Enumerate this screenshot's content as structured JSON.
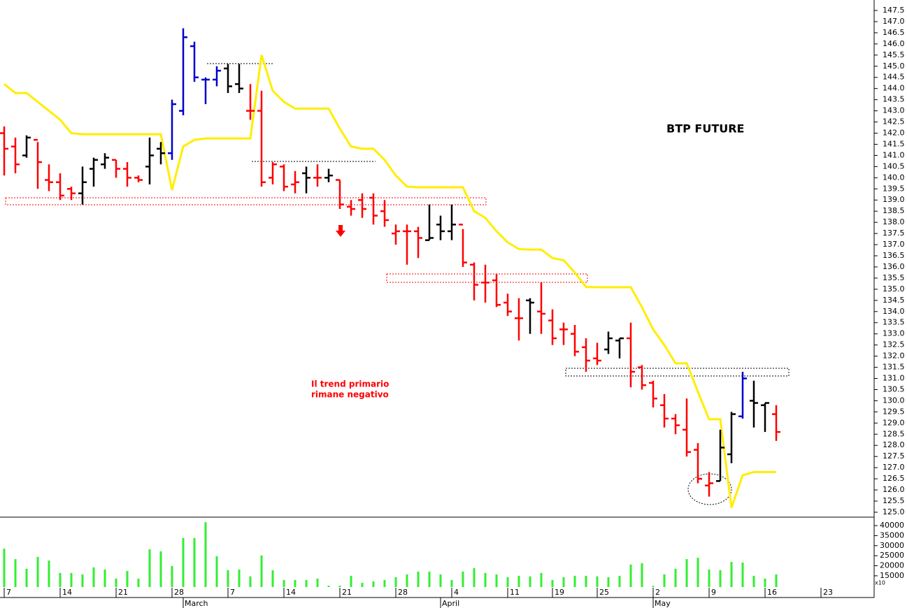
{
  "chart_data": {
    "type": "ohlc",
    "title": "BTP FUTURE",
    "annotation": [
      "Il trend primario",
      "rimane negativo"
    ],
    "categories": [
      "7",
      null,
      null,
      null,
      null,
      "14",
      null,
      null,
      null,
      null,
      "21",
      null,
      null,
      null,
      null,
      "28",
      null,
      null,
      null,
      null,
      "7",
      null,
      null,
      null,
      null,
      "14",
      null,
      null,
      null,
      null,
      "21",
      null,
      null,
      null,
      null,
      "28",
      null,
      null,
      null,
      null,
      "4",
      null,
      null,
      null,
      null,
      "11",
      null,
      null,
      null,
      "19",
      null,
      null,
      null,
      "25",
      null,
      null,
      null,
      null,
      "2",
      null,
      null,
      null,
      null,
      "9",
      null,
      null,
      null,
      null,
      "16",
      null,
      null,
      null,
      null,
      "23"
    ],
    "months": [
      null,
      null,
      null,
      null,
      null,
      null,
      null,
      null,
      null,
      null,
      null,
      null,
      null,
      null,
      null,
      null,
      "March",
      null,
      null,
      null,
      null,
      null,
      null,
      null,
      null,
      null,
      null,
      null,
      null,
      null,
      null,
      null,
      null,
      null,
      null,
      null,
      null,
      null,
      null,
      "April",
      null,
      null,
      null,
      null,
      null,
      null,
      null,
      null,
      null,
      null,
      null,
      null,
      null,
      null,
      null,
      null,
      null,
      null,
      "May",
      null,
      null,
      null,
      null,
      null,
      null,
      null,
      null,
      null,
      null,
      null,
      null,
      null,
      null,
      null
    ],
    "open": [
      142.0,
      141.4,
      141.0,
      141.7,
      139.9,
      139.8,
      139.5,
      139.3,
      140.4,
      140.6,
      140.8,
      140.4,
      140.0,
      140.5,
      141.3,
      141.1,
      143.0,
      145.9,
      144.4,
      144.4,
      144.9,
      144.2,
      143.0,
      143.0,
      140.0,
      140.5,
      139.7,
      140.2,
      140.0,
      140.0,
      139.9,
      138.7,
      139.0,
      139.1,
      138.5,
      137.5,
      137.6,
      137.6,
      137.2,
      137.9,
      137.6,
      137.9,
      136.1,
      135.3,
      135.4,
      134.4,
      133.7,
      134.5,
      134.0,
      133.6,
      133.2,
      133.0,
      132.4,
      131.9,
      132.3,
      132.7,
      132.8,
      131.5,
      130.8,
      129.8,
      129.2,
      128.7,
      127.8,
      126.2,
      126.4,
      127.6,
      129.3,
      130.0,
      129.8,
      129.4,
      null,
      null,
      null,
      null
    ],
    "high": [
      142.3,
      141.8,
      141.9,
      141.6,
      140.6,
      140.2,
      139.6,
      140.5,
      140.9,
      141.1,
      140.8,
      140.7,
      140.1,
      141.8,
      141.6,
      143.5,
      146.7,
      146.1,
      144.5,
      145.0,
      145.1,
      145.1,
      144.2,
      143.9,
      140.7,
      140.6,
      140.3,
      140.5,
      140.6,
      140.4,
      139.9,
      139.0,
      139.3,
      139.3,
      139.0,
      137.9,
      137.9,
      137.8,
      138.8,
      138.3,
      138.8,
      137.7,
      136.2,
      136.1,
      135.7,
      134.8,
      134.6,
      134.6,
      135.3,
      134.1,
      133.5,
      133.4,
      132.8,
      132.6,
      133.1,
      132.8,
      133.5,
      131.6,
      130.9,
      130.3,
      129.4,
      130.1,
      128.1,
      126.8,
      128.7,
      129.5,
      131.3,
      130.9,
      129.9,
      129.8,
      null,
      null,
      null,
      null
    ],
    "low": [
      140.1,
      140.2,
      140.9,
      139.5,
      139.4,
      139.0,
      139.0,
      138.8,
      139.6,
      140.4,
      140.0,
      139.6,
      139.8,
      139.7,
      140.6,
      140.8,
      142.8,
      144.3,
      143.3,
      144.1,
      143.8,
      143.8,
      142.6,
      139.6,
      139.7,
      139.4,
      139.3,
      139.3,
      139.6,
      139.8,
      138.6,
      138.3,
      138.2,
      137.9,
      137.8,
      137.0,
      136.1,
      136.4,
      137.2,
      137.2,
      137.2,
      136.0,
      134.5,
      134.4,
      134.2,
      133.8,
      132.7,
      133.0,
      133.0,
      132.5,
      132.5,
      132.0,
      131.3,
      131.6,
      132.1,
      131.9,
      130.6,
      130.5,
      129.7,
      128.8,
      128.5,
      127.5,
      126.3,
      125.7,
      126.4,
      127.2,
      129.2,
      128.8,
      128.6,
      128.2,
      null,
      null,
      null,
      null
    ],
    "close": [
      141.3,
      140.6,
      141.8,
      140.7,
      139.8,
      139.2,
      139.3,
      139.8,
      140.8,
      140.9,
      140.4,
      140.0,
      139.9,
      141.0,
      141.1,
      143.3,
      146.3,
      144.5,
      144.4,
      144.8,
      144.1,
      144.0,
      143.0,
      139.8,
      140.6,
      139.6,
      139.8,
      140.0,
      140.0,
      140.1,
      138.8,
      138.6,
      138.6,
      138.3,
      138.1,
      137.6,
      137.6,
      137.3,
      137.3,
      137.6,
      137.9,
      136.2,
      135.2,
      135.3,
      134.3,
      134.0,
      133.7,
      134.4,
      133.9,
      132.8,
      133.2,
      132.2,
      131.8,
      131.8,
      132.8,
      132.8,
      131.3,
      130.7,
      130.1,
      129.2,
      128.9,
      127.7,
      126.5,
      126.3,
      127.9,
      129.4,
      131.0,
      129.9,
      129.9,
      128.6,
      null,
      null,
      null,
      null
    ],
    "bar_colors": [
      "#ff0000",
      "#ff0000",
      "#000000",
      "#ff0000",
      "#ff0000",
      "#ff0000",
      "#ff0000",
      "#000000",
      "#000000",
      "#000000",
      "#ff0000",
      "#ff0000",
      "#ff0000",
      "#000000",
      "#000000",
      "#0000cc",
      "#0000cc",
      "#0000cc",
      "#0000cc",
      "#0000cc",
      "#000000",
      "#000000",
      "#ff0000",
      "#ff0000",
      "#ff0000",
      "#ff0000",
      "#ff0000",
      "#000000",
      "#ff0000",
      "#000000",
      "#ff0000",
      "#ff0000",
      "#ff0000",
      "#ff0000",
      "#ff0000",
      "#ff0000",
      "#ff0000",
      "#ff0000",
      "#000000",
      "#000000",
      "#000000",
      "#ff0000",
      "#ff0000",
      "#ff0000",
      "#ff0000",
      "#ff0000",
      "#ff0000",
      "#000000",
      "#ff0000",
      "#ff0000",
      "#ff0000",
      "#ff0000",
      "#ff0000",
      "#ff0000",
      "#000000",
      "#000000",
      "#ff0000",
      "#ff0000",
      "#ff0000",
      "#ff0000",
      "#ff0000",
      "#ff0000",
      "#ff0000",
      "#ff0000",
      "#000000",
      "#000000",
      "#0000cc",
      "#000000",
      "#000000",
      "#ff0000",
      null,
      null,
      null,
      null
    ],
    "line": {
      "color": "#ffee00",
      "values": [
        144.2,
        143.8,
        143.8,
        143.4,
        143.0,
        142.6,
        142.0,
        141.95,
        141.95,
        141.95,
        141.95,
        141.95,
        141.95,
        141.95,
        141.95,
        139.45,
        141.4,
        141.7,
        141.76,
        141.76,
        141.76,
        141.76,
        141.76,
        145.5,
        143.9,
        143.4,
        143.1,
        143.1,
        143.1,
        143.1,
        142.2,
        141.4,
        141.3,
        141.3,
        140.8,
        140.1,
        139.6,
        139.57,
        139.57,
        139.57,
        139.57,
        139.57,
        138.5,
        138.2,
        137.6,
        137.1,
        136.8,
        136.78,
        136.78,
        136.4,
        136.3,
        135.75,
        135.1,
        135.09,
        135.09,
        135.09,
        135.09,
        134.2,
        133.2,
        132.5,
        131.68,
        131.68,
        130.4,
        129.17,
        129.17,
        125.2,
        126.66,
        126.8,
        126.8,
        126.8,
        null,
        null,
        null,
        null
      ]
    },
    "ylim": [
      124.78,
      147.97
    ],
    "yticks": [
      {
        "value": 125,
        "label": "125.0"
      },
      125.5,
      {
        "value": 126,
        "label": "126.0"
      },
      126.5,
      {
        "value": 127,
        "label": "127.0"
      },
      127.5,
      {
        "value": 128,
        "label": "128.0"
      },
      128.5,
      {
        "value": 129,
        "label": "129.0"
      },
      129.5,
      {
        "value": 130,
        "label": "130.0"
      },
      130.5,
      {
        "value": 131,
        "label": "131.0"
      },
      131.5,
      {
        "value": 132,
        "label": "132.0"
      },
      132.5,
      {
        "value": 133,
        "label": "133.0"
      },
      133.5,
      {
        "value": 134,
        "label": "134.0"
      },
      134.5,
      {
        "value": 135,
        "label": "135.0"
      },
      135.5,
      {
        "value": 136,
        "label": "136.0"
      },
      136.5,
      {
        "value": 137,
        "label": "137.0"
      },
      137.5,
      {
        "value": 138,
        "label": "138.0"
      },
      138.5,
      {
        "value": 139,
        "label": "139.0"
      },
      139.5,
      {
        "value": 140,
        "label": "140.0"
      },
      140.5,
      {
        "value": 141,
        "label": "141.0"
      },
      141.5,
      {
        "value": 142,
        "label": "142.0"
      },
      142.5,
      {
        "value": 143,
        "label": "143.0"
      },
      143.5,
      {
        "value": 144,
        "label": "144.0"
      },
      144.5,
      {
        "value": 145,
        "label": "145.0"
      },
      145.5,
      {
        "value": 146,
        "label": "146.0"
      },
      146.5,
      {
        "value": 147,
        "label": "147.0"
      },
      147.5
    ],
    "volume": {
      "color": "#33ee33",
      "scale_label": "x10",
      "values": [
        28500,
        23300,
        18500,
        24400,
        22600,
        16400,
        16400,
        15700,
        19200,
        18100,
        13600,
        17400,
        13600,
        28200,
        27200,
        19900,
        33800,
        33800,
        41700,
        24700,
        17800,
        18100,
        14700,
        25100,
        17800,
        12900,
        12900,
        12900,
        13600,
        10100,
        10100,
        15000,
        11500,
        12200,
        12900,
        14300,
        15700,
        17100,
        17100,
        15700,
        12900,
        17100,
        18800,
        16400,
        15700,
        14300,
        15000,
        14700,
        16400,
        12900,
        14300,
        15000,
        15000,
        14700,
        14300,
        15000,
        20600,
        21300,
        10000,
        15700,
        18500,
        23300,
        24000,
        18100,
        17800,
        21900,
        21600,
        15000,
        13600,
        15700,
        null,
        null,
        null,
        null
      ],
      "ylim": [
        9400,
        44200
      ],
      "yticks": [
        15000,
        20000,
        25000,
        30000,
        35000,
        40000
      ]
    }
  }
}
